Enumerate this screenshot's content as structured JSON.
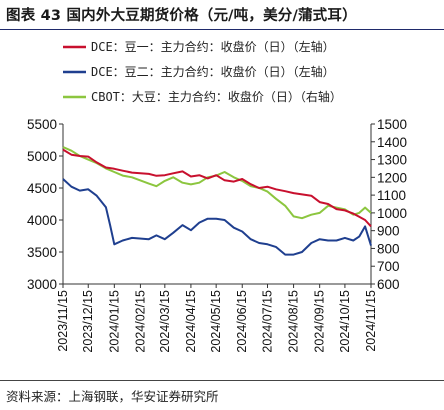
{
  "header": {
    "title": "图表 43 国内外大豆期货价格（元/吨，美分/蒲式耳）"
  },
  "footer": {
    "source": "资料来源：上海钢联，华安证券研究所"
  },
  "colors": {
    "dce1": "#c8102e",
    "dce2": "#1f3f8f",
    "cbot": "#8cc63f",
    "rule": "#1f2a6b"
  },
  "chart_data": {
    "type": "line",
    "title": "",
    "legend_placement": "top-left",
    "grid": false,
    "y_left": {
      "min": 3000,
      "max": 5500,
      "ticks": [
        3000,
        3500,
        4000,
        4500,
        5000,
        5500
      ]
    },
    "y_right": {
      "min": 600,
      "max": 1500,
      "ticks": [
        600,
        700,
        800,
        900,
        1000,
        1100,
        1200,
        1300,
        1400,
        1500
      ]
    },
    "x_ticks": [
      "2023/11/15",
      "2023/12/15",
      "2024/01/15",
      "2024/02/15",
      "2024/03/15",
      "2024/04/15",
      "2024/05/15",
      "2024/06/15",
      "2024/07/15",
      "2024/08/15",
      "2024/09/15",
      "2024/10/15",
      "2024/11/15"
    ],
    "x_range": [
      "2023/11/15",
      "2024/11/15"
    ],
    "series": [
      {
        "name": "DCE：豆一：主力合约：收盘价（日）（左轴）",
        "axis": "left",
        "color": "#c8102e",
        "x": [
          "2023/11/15",
          "2023/11/25",
          "2023/12/05",
          "2023/12/15",
          "2023/12/25",
          "2024/01/05",
          "2024/01/15",
          "2024/01/25",
          "2024/02/05",
          "2024/02/25",
          "2024/03/05",
          "2024/03/15",
          "2024/03/25",
          "2024/04/05",
          "2024/04/15",
          "2024/04/25",
          "2024/05/05",
          "2024/05/15",
          "2024/05/25",
          "2024/06/05",
          "2024/06/15",
          "2024/06/25",
          "2024/07/05",
          "2024/07/15",
          "2024/07/25",
          "2024/08/05",
          "2024/08/15",
          "2024/08/25",
          "2024/09/05",
          "2024/09/15",
          "2024/09/25",
          "2024/10/05",
          "2024/10/15",
          "2024/10/25",
          "2024/11/01",
          "2024/11/08",
          "2024/11/15"
        ],
        "y": [
          5100,
          5020,
          5000,
          4990,
          4900,
          4820,
          4800,
          4770,
          4740,
          4720,
          4690,
          4700,
          4730,
          4760,
          4680,
          4700,
          4650,
          4700,
          4620,
          4600,
          4640,
          4560,
          4500,
          4520,
          4480,
          4450,
          4420,
          4400,
          4380,
          4280,
          4250,
          4170,
          4150,
          4100,
          4050,
          4000,
          3900
        ]
      },
      {
        "name": "DCE：豆二：主力合约：收盘价（日）（左轴）",
        "axis": "left",
        "color": "#1f3f8f",
        "x": [
          "2023/11/15",
          "2023/11/25",
          "2023/12/05",
          "2023/12/15",
          "2023/12/25",
          "2024/01/05",
          "2024/01/10",
          "2024/01/15",
          "2024/01/25",
          "2024/02/05",
          "2024/02/25",
          "2024/03/05",
          "2024/03/15",
          "2024/03/25",
          "2024/04/05",
          "2024/04/15",
          "2024/04/25",
          "2024/05/05",
          "2024/05/15",
          "2024/05/25",
          "2024/06/05",
          "2024/06/15",
          "2024/06/25",
          "2024/07/05",
          "2024/07/15",
          "2024/07/25",
          "2024/08/05",
          "2024/08/15",
          "2024/08/25",
          "2024/09/05",
          "2024/09/15",
          "2024/09/25",
          "2024/10/05",
          "2024/10/15",
          "2024/10/25",
          "2024/11/01",
          "2024/11/08",
          "2024/11/15"
        ],
        "y": [
          4640,
          4520,
          4460,
          4480,
          4380,
          4200,
          3920,
          3620,
          3680,
          3720,
          3700,
          3760,
          3700,
          3800,
          3920,
          3840,
          3960,
          4020,
          4020,
          4000,
          3880,
          3820,
          3700,
          3640,
          3620,
          3580,
          3460,
          3460,
          3500,
          3640,
          3700,
          3680,
          3680,
          3720,
          3680,
          3740,
          3900,
          3600
        ]
      },
      {
        "name": "CBOT：大豆：主力合约：收盘价（日）（右轴）",
        "axis": "right",
        "color": "#8cc63f",
        "x": [
          "2023/11/15",
          "2023/11/25",
          "2023/12/05",
          "2023/12/15",
          "2023/12/25",
          "2024/01/05",
          "2024/01/15",
          "2024/01/25",
          "2024/02/05",
          "2024/02/25",
          "2024/03/05",
          "2024/03/15",
          "2024/03/25",
          "2024/04/05",
          "2024/04/15",
          "2024/04/25",
          "2024/05/05",
          "2024/05/15",
          "2024/05/25",
          "2024/06/05",
          "2024/06/15",
          "2024/06/25",
          "2024/07/05",
          "2024/07/15",
          "2024/07/25",
          "2024/08/05",
          "2024/08/15",
          "2024/08/25",
          "2024/09/05",
          "2024/09/15",
          "2024/09/25",
          "2024/10/05",
          "2024/10/15",
          "2024/10/25",
          "2024/11/01",
          "2024/11/08",
          "2024/11/15"
        ],
        "y": [
          1370,
          1350,
          1320,
          1300,
          1280,
          1250,
          1230,
          1210,
          1200,
          1165,
          1150,
          1180,
          1200,
          1170,
          1160,
          1170,
          1200,
          1210,
          1230,
          1200,
          1180,
          1150,
          1140,
          1120,
          1080,
          1040,
          980,
          970,
          990,
          1000,
          1040,
          1030,
          1020,
          990,
          1000,
          1030,
          1000
        ]
      }
    ]
  }
}
